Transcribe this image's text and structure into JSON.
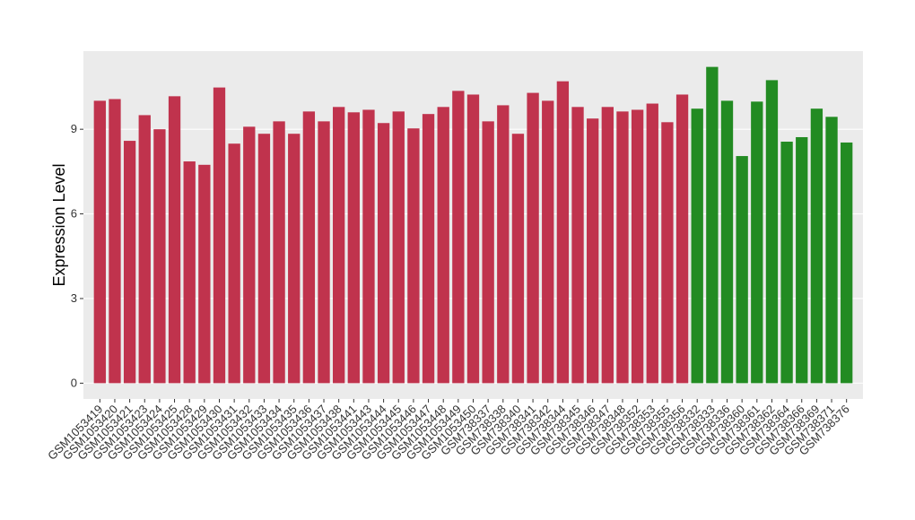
{
  "chart_data": {
    "type": "bar",
    "y_label": "Expression Level",
    "categories": [
      "GSM1053419",
      "GSM1053420",
      "GSM1053421",
      "GSM1053423",
      "GSM1053424",
      "GSM1053425",
      "GSM1053428",
      "GSM1053429",
      "GSM1053430",
      "GSM1053431",
      "GSM1053432",
      "GSM1053433",
      "GSM1053434",
      "GSM1053435",
      "GSM1053436",
      "GSM1053437",
      "GSM1053438",
      "GSM1053441",
      "GSM1053443",
      "GSM1053444",
      "GSM1053445",
      "GSM1053446",
      "GSM1053447",
      "GSM1053448",
      "GSM1053449",
      "GSM1053450",
      "GSM738337",
      "GSM738338",
      "GSM738340",
      "GSM738341",
      "GSM738342",
      "GSM738344",
      "GSM738345",
      "GSM738346",
      "GSM738347",
      "GSM738348",
      "GSM738352",
      "GSM738353",
      "GSM738355",
      "GSM738356",
      "GSM738332",
      "GSM738333",
      "GSM738336",
      "GSM738360",
      "GSM738361",
      "GSM738362",
      "GSM738364",
      "GSM738366",
      "GSM738369",
      "GSM738371",
      "GSM738376"
    ],
    "values": [
      10.01,
      10.07,
      8.59,
      9.5,
      9.0,
      10.17,
      7.86,
      7.74,
      10.48,
      8.49,
      9.09,
      8.84,
      9.28,
      8.84,
      9.63,
      9.28,
      9.79,
      9.6,
      9.69,
      9.22,
      9.63,
      9.03,
      9.54,
      9.79,
      10.36,
      10.23,
      9.28,
      9.85,
      8.84,
      10.29,
      10.01,
      10.7,
      9.79,
      9.38,
      9.79,
      9.63,
      9.69,
      9.91,
      9.25,
      10.23,
      9.73,
      11.21,
      10.01,
      8.05,
      9.98,
      10.74,
      8.56,
      8.72,
      9.73,
      9.44,
      8.53
    ],
    "colors": [
      "#c0334d",
      "#c0334d",
      "#c0334d",
      "#c0334d",
      "#c0334d",
      "#c0334d",
      "#c0334d",
      "#c0334d",
      "#c0334d",
      "#c0334d",
      "#c0334d",
      "#c0334d",
      "#c0334d",
      "#c0334d",
      "#c0334d",
      "#c0334d",
      "#c0334d",
      "#c0334d",
      "#c0334d",
      "#c0334d",
      "#c0334d",
      "#c0334d",
      "#c0334d",
      "#c0334d",
      "#c0334d",
      "#c0334d",
      "#c0334d",
      "#c0334d",
      "#c0334d",
      "#c0334d",
      "#c0334d",
      "#c0334d",
      "#c0334d",
      "#c0334d",
      "#c0334d",
      "#c0334d",
      "#c0334d",
      "#c0334d",
      "#c0334d",
      "#c0334d",
      "#228b22",
      "#228b22",
      "#228b22",
      "#228b22",
      "#228b22",
      "#228b22",
      "#228b22",
      "#228b22",
      "#228b22",
      "#228b22",
      "#228b22"
    ],
    "ylim": [
      -0.56,
      11.77
    ],
    "yticks": [
      0,
      3,
      6,
      9
    ],
    "grid": true
  }
}
